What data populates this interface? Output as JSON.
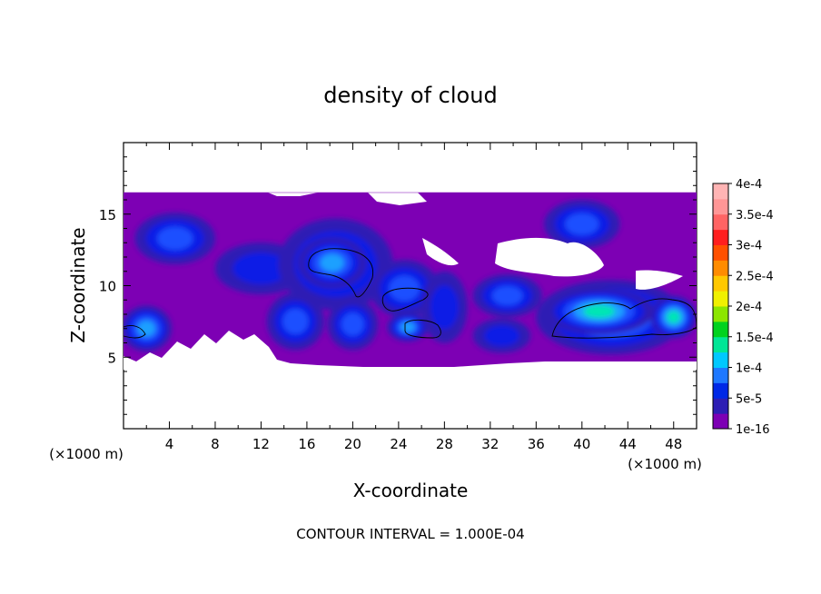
{
  "chart_data": {
    "type": "heatmap",
    "title": "density of cloud",
    "xlabel": "X-coordinate",
    "ylabel": "Z-coordinate",
    "x_unit_left": "(×1000 m)",
    "x_unit_right": "(×1000 m)",
    "footer": "CONTOUR INTERVAL = 1.000E-04",
    "xlim": [
      0,
      50
    ],
    "ylim": [
      0,
      20
    ],
    "x_ticks": [
      4,
      8,
      12,
      16,
      20,
      24,
      28,
      32,
      36,
      40,
      44,
      48
    ],
    "y_ticks": [
      5,
      10,
      15
    ],
    "x_tick_labels": [
      "4",
      "8",
      "12",
      "16",
      "20",
      "24",
      "28",
      "32",
      "36",
      "40",
      "44",
      "48"
    ],
    "y_tick_labels": [
      "5",
      "10",
      "15"
    ],
    "colorbar": {
      "labels": [
        "1e-16",
        "5e-5",
        "1e-4",
        "1.5e-4",
        "2e-4",
        "2.5e-4",
        "3e-4",
        "3.5e-4",
        "4e-4"
      ],
      "colors": [
        "#7d00b4",
        "#2d1eb4",
        "#0028e6",
        "#1e78ff",
        "#00c8ff",
        "#00e696",
        "#00d21e",
        "#8ce600",
        "#f0f000",
        "#ffc800",
        "#ff8c00",
        "#ff5000",
        "#ff1e1e",
        "#ff6464",
        "#ff9696",
        "#ffb4b4"
      ]
    },
    "cloud_extent": {
      "x": [
        0,
        50
      ],
      "z": [
        4.8,
        16.3
      ]
    },
    "features": [
      {
        "kind": "blob",
        "x": 4.5,
        "z": 13.3,
        "rx": 3.5,
        "rz": 1.8,
        "level": 3
      },
      {
        "kind": "blob",
        "x": 2.0,
        "z": 7.0,
        "rx": 2.2,
        "rz": 1.6,
        "level": 4
      },
      {
        "kind": "blob",
        "x": 12.0,
        "z": 11.2,
        "rx": 4.0,
        "rz": 1.8,
        "level": 2
      },
      {
        "kind": "blob",
        "x": 18.5,
        "z": 11.5,
        "rx": 5.0,
        "rz": 3.2,
        "level": 3
      },
      {
        "kind": "blob",
        "x": 18.2,
        "z": 11.6,
        "rx": 3.0,
        "rz": 1.8,
        "level": 4
      },
      {
        "kind": "blob",
        "x": 15.0,
        "z": 7.5,
        "rx": 2.5,
        "rz": 2.0,
        "level": 3
      },
      {
        "kind": "blob",
        "x": 20.0,
        "z": 7.3,
        "rx": 2.2,
        "rz": 1.8,
        "level": 3
      },
      {
        "kind": "blob",
        "x": 24.5,
        "z": 9.8,
        "rx": 3.0,
        "rz": 2.0,
        "level": 3
      },
      {
        "kind": "blob",
        "x": 24.8,
        "z": 7.1,
        "rx": 1.8,
        "rz": 1.0,
        "level": 4
      },
      {
        "kind": "blob",
        "x": 28.0,
        "z": 8.5,
        "rx": 2.0,
        "rz": 2.5,
        "level": 2
      },
      {
        "kind": "blob",
        "x": 33.5,
        "z": 9.3,
        "rx": 3.0,
        "rz": 1.5,
        "level": 3
      },
      {
        "kind": "blob",
        "x": 40.0,
        "z": 14.3,
        "rx": 3.3,
        "rz": 1.7,
        "level": 3
      },
      {
        "kind": "blob",
        "x": 42.5,
        "z": 7.8,
        "rx": 6.5,
        "rz": 2.6,
        "level": 4
      },
      {
        "kind": "blob",
        "x": 41.5,
        "z": 8.2,
        "rx": 4.8,
        "rz": 1.6,
        "level": 5
      },
      {
        "kind": "blob",
        "x": 48.0,
        "z": 7.8,
        "rx": 2.0,
        "rz": 1.5,
        "level": 5
      },
      {
        "kind": "blob",
        "x": 33.0,
        "z": 6.5,
        "rx": 2.5,
        "rz": 1.2,
        "level": 2
      }
    ]
  }
}
